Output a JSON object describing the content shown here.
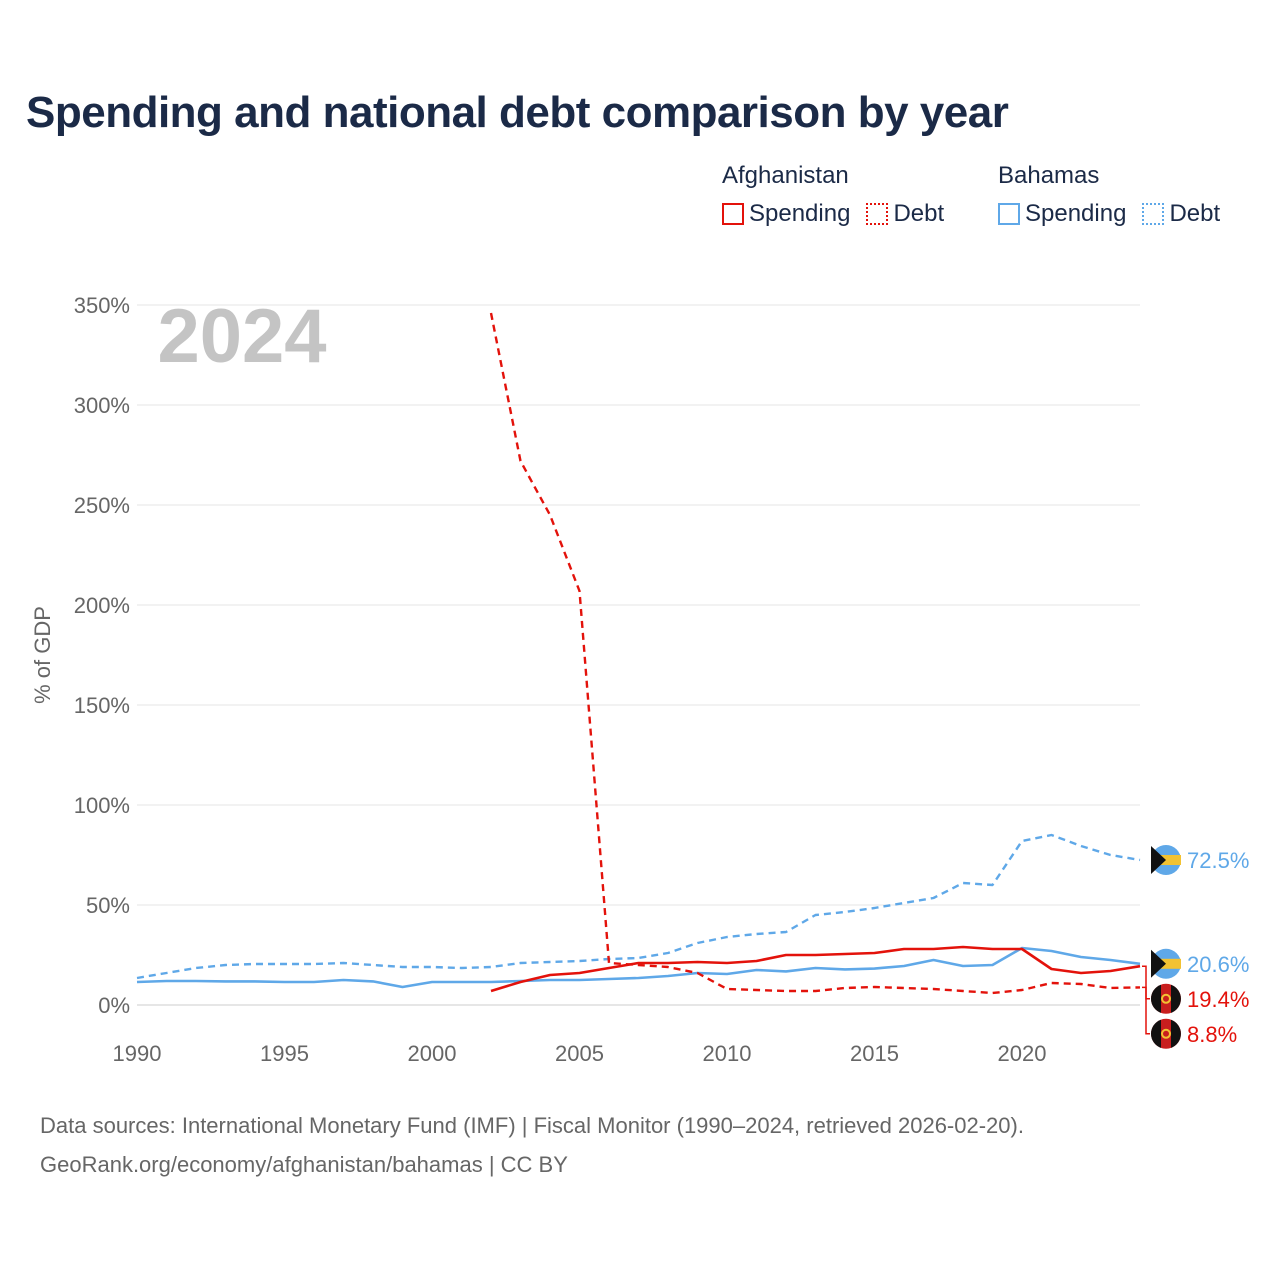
{
  "title": "Spending and national debt comparison by year",
  "legend": {
    "groups": [
      {
        "name": "Afghanistan",
        "color": "#e3120b",
        "items": [
          {
            "label": "Spending",
            "style": "solid"
          },
          {
            "label": "Debt",
            "style": "dotted"
          }
        ]
      },
      {
        "name": "Bahamas",
        "color": "#5fa8e8",
        "items": [
          {
            "label": "Spending",
            "style": "solid"
          },
          {
            "label": "Debt",
            "style": "dotted"
          }
        ]
      }
    ]
  },
  "chart_data": {
    "type": "line",
    "year_watermark": "2024",
    "ylabel": "% of GDP",
    "xlabel": "",
    "xlim": [
      1990,
      2024
    ],
    "ylim": [
      0,
      350
    ],
    "x_ticks": [
      1990,
      1995,
      2000,
      2005,
      2010,
      2015,
      2020
    ],
    "y_ticks": [
      0,
      50,
      100,
      150,
      200,
      250,
      300,
      350
    ],
    "y_tick_labels": [
      "0%",
      "50%",
      "100%",
      "150%",
      "200%",
      "250%",
      "300%",
      "350%"
    ],
    "series": [
      {
        "name": "Bahamas Debt",
        "country": "Bahamas",
        "metric": "Debt",
        "color": "#5fa8e8",
        "dash": "dashed",
        "x": [
          1990,
          1991,
          1992,
          1993,
          1994,
          1995,
          1996,
          1997,
          1998,
          1999,
          2000,
          2001,
          2002,
          2003,
          2004,
          2005,
          2006,
          2007,
          2008,
          2009,
          2010,
          2011,
          2012,
          2013,
          2014,
          2015,
          2016,
          2017,
          2018,
          2019,
          2020,
          2021,
          2022,
          2023,
          2024
        ],
        "values": [
          13.5,
          16,
          18.5,
          20,
          20.5,
          20.5,
          20.5,
          21,
          20,
          19,
          19,
          18.5,
          19,
          21,
          21.5,
          22,
          23,
          23.5,
          26,
          31,
          34,
          35.5,
          36.5,
          45,
          46.5,
          48.5,
          51,
          53.5,
          61,
          60,
          82,
          85,
          79.5,
          75,
          72.5
        ],
        "end_label": "72.5%"
      },
      {
        "name": "Bahamas Spending",
        "country": "Bahamas",
        "metric": "Spending",
        "color": "#5fa8e8",
        "dash": "solid",
        "x": [
          1990,
          1991,
          1992,
          1993,
          1994,
          1995,
          1996,
          1997,
          1998,
          1999,
          2000,
          2001,
          2002,
          2003,
          2004,
          2005,
          2006,
          2007,
          2008,
          2009,
          2010,
          2011,
          2012,
          2013,
          2014,
          2015,
          2016,
          2017,
          2018,
          2019,
          2020,
          2021,
          2022,
          2023,
          2024
        ],
        "values": [
          11.5,
          12,
          12,
          11.8,
          11.8,
          11.5,
          11.5,
          12.5,
          11.8,
          9,
          11.5,
          11.5,
          11.5,
          12,
          12.5,
          12.5,
          13,
          13.5,
          14.5,
          16,
          15.5,
          17.5,
          16.8,
          18.5,
          17.8,
          18.2,
          19.5,
          22.5,
          19.5,
          20,
          28.5,
          27,
          24,
          22.5,
          20.6
        ],
        "end_label": "20.6%"
      },
      {
        "name": "Afghanistan Spending",
        "country": "Afghanistan",
        "metric": "Spending",
        "color": "#e3120b",
        "dash": "solid",
        "x": [
          2002,
          2003,
          2004,
          2005,
          2006,
          2007,
          2008,
          2009,
          2010,
          2011,
          2012,
          2013,
          2014,
          2015,
          2016,
          2017,
          2018,
          2019,
          2020,
          2021,
          2022,
          2023,
          2024
        ],
        "values": [
          7,
          11.5,
          15,
          16,
          18.5,
          21,
          21,
          21.5,
          21,
          22,
          25,
          25,
          25.5,
          26,
          28,
          28,
          29,
          28,
          28,
          18,
          16,
          17,
          19.4
        ],
        "end_label": "19.4%"
      },
      {
        "name": "Afghanistan Debt",
        "country": "Afghanistan",
        "metric": "Debt",
        "color": "#e3120b",
        "dash": "dashed",
        "x": [
          2002,
          2003,
          2004,
          2005,
          2006,
          2007,
          2008,
          2009,
          2010,
          2011,
          2012,
          2013,
          2014,
          2015,
          2016,
          2017,
          2018,
          2019,
          2020,
          2021,
          2022,
          2023,
          2024
        ],
        "values": [
          346,
          272,
          245,
          207,
          21,
          20,
          19,
          16,
          8,
          7.5,
          7,
          7,
          8.5,
          9,
          8.5,
          8,
          7,
          6,
          7.5,
          11,
          10.5,
          8.5,
          8.8
        ],
        "end_label": "8.8%"
      }
    ]
  },
  "footer": {
    "line1": "Data sources: International Monetary Fund (IMF) | Fiscal Monitor (1990–2024, retrieved 2026-02-20).",
    "line2": "GeoRank.org/economy/afghanistan/bahamas | CC BY"
  }
}
